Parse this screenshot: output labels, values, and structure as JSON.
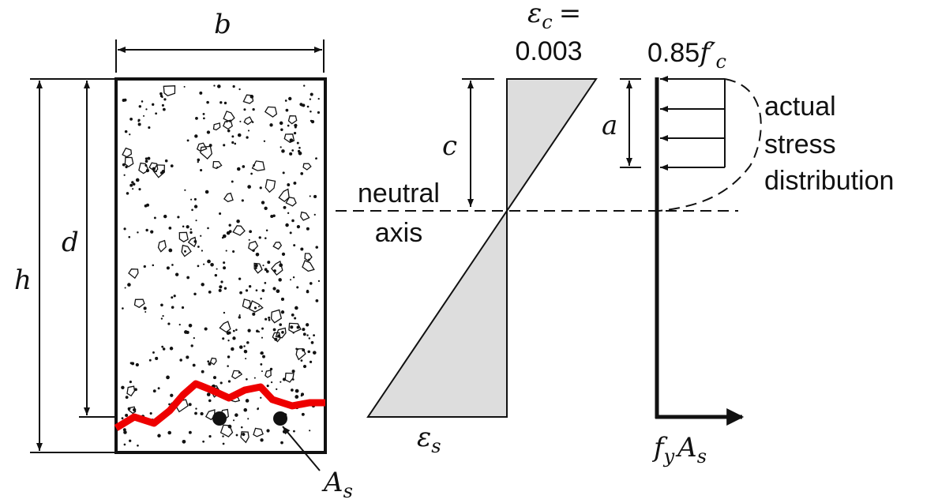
{
  "labels": {
    "b": "b",
    "h": "h",
    "d": "d",
    "c": "c",
    "a": "a",
    "epsilon_c": {
      "symbol": "ε",
      "subscript": "c",
      "relation": "="
    },
    "strain_value": "0.003",
    "stress": {
      "coefficient": "0.85",
      "symbol": "f′",
      "subscript": "c"
    },
    "neutral_axis": [
      "neutral",
      "axis"
    ],
    "actual_stress": [
      "actual",
      "stress",
      "distribution"
    ],
    "epsilon_s": {
      "symbol": "ε",
      "subscript": "s"
    },
    "steel_area": {
      "symbol": "A",
      "subscript": "s"
    },
    "steel_force": {
      "symbol1": "f",
      "subscript1": "y",
      "symbol2": "A",
      "subscript2": "s"
    }
  }
}
